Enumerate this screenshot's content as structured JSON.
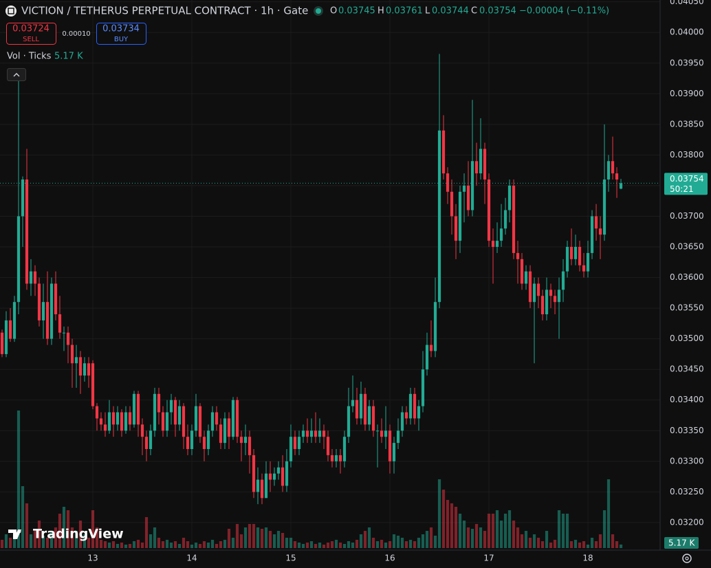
{
  "header": {
    "title": "VICTION / TETHERUS PERPETUAL CONTRACT · 1h · Gate",
    "open_label": "O",
    "open": "0.03745",
    "high_label": "H",
    "high": "0.03761",
    "low_label": "L",
    "low": "0.03744",
    "close_label": "C",
    "close": "0.03754",
    "change": "−0.00004 (−0.11%)"
  },
  "order": {
    "sell_price": "0.03724",
    "sell": "SELL",
    "spread": "0.00010",
    "buy_price": "0.03734",
    "buy": "BUY"
  },
  "brand": "TradingView",
  "chart_data": {
    "type": "candlestick",
    "timeframe_hours": 1,
    "up_color": "#22ab94",
    "down_color": "#f23645",
    "grid": true,
    "xlim": [
      12.0625,
      18.729
    ],
    "xticks": [
      13,
      14,
      15,
      16,
      17,
      18
    ],
    "ylim": [
      0.03155,
      0.04053
    ],
    "yticks": [
      {
        "value": 0.032,
        "label": "0.03200"
      },
      {
        "value": 0.0325,
        "label": "0.03250"
      },
      {
        "value": 0.033,
        "label": "0.03300"
      },
      {
        "value": 0.0335,
        "label": "0.03350"
      },
      {
        "value": 0.034,
        "label": "0.03400"
      },
      {
        "value": 0.0345,
        "label": "0.03450"
      },
      {
        "value": 0.035,
        "label": "0.03500"
      },
      {
        "value": 0.0355,
        "label": "0.03550"
      },
      {
        "value": 0.036,
        "label": "0.03600"
      },
      {
        "value": 0.0365,
        "label": "0.03650"
      },
      {
        "value": 0.037,
        "label": "0.03700"
      },
      {
        "value": 0.0375,
        "label": "0.03750"
      },
      {
        "value": 0.038,
        "label": "0.03800"
      },
      {
        "value": 0.0385,
        "label": "0.03850"
      },
      {
        "value": 0.039,
        "label": "0.03900"
      },
      {
        "value": 0.0395,
        "label": "0.03950"
      },
      {
        "value": 0.04,
        "label": "0.04000"
      },
      {
        "value": 0.0405,
        "label": "0.04050"
      }
    ],
    "last_price_label": "0.03754",
    "countdown": "50:21",
    "ohlc": [
      [
        0.0351,
        0.03515,
        0.0347,
        0.03475
      ],
      [
        0.03475,
        0.03545,
        0.0347,
        0.0353
      ],
      [
        0.0353,
        0.0355,
        0.03495,
        0.035
      ],
      [
        0.035,
        0.0357,
        0.03495,
        0.0356
      ],
      [
        0.0356,
        0.0393,
        0.0354,
        0.037
      ],
      [
        0.037,
        0.03765,
        0.0365,
        0.0376
      ],
      [
        0.0376,
        0.0381,
        0.0358,
        0.0359
      ],
      [
        0.0359,
        0.0363,
        0.0357,
        0.0361
      ],
      [
        0.0361,
        0.0362,
        0.0357,
        0.0359
      ],
      [
        0.0359,
        0.036,
        0.0352,
        0.0353
      ],
      [
        0.0353,
        0.0359,
        0.035,
        0.0356
      ],
      [
        0.0356,
        0.0361,
        0.0349,
        0.035
      ],
      [
        0.035,
        0.036,
        0.0349,
        0.0359
      ],
      [
        0.0359,
        0.0361,
        0.0353,
        0.0354
      ],
      [
        0.0354,
        0.0357,
        0.035,
        0.0351
      ],
      [
        0.0351,
        0.0352,
        0.0348,
        0.0351
      ],
      [
        0.0351,
        0.0352,
        0.0346,
        0.0349
      ],
      [
        0.0349,
        0.035,
        0.0342,
        0.0346
      ],
      [
        0.0346,
        0.0349,
        0.0342,
        0.0347
      ],
      [
        0.0347,
        0.0348,
        0.0341,
        0.0344
      ],
      [
        0.0344,
        0.0347,
        0.0343,
        0.0346
      ],
      [
        0.0346,
        0.0347,
        0.0342,
        0.0344
      ],
      [
        0.0346,
        0.03465,
        0.03385,
        0.0339
      ],
      [
        0.0339,
        0.03395,
        0.0335,
        0.0337
      ],
      [
        0.0337,
        0.0338,
        0.0335,
        0.0336
      ],
      [
        0.0336,
        0.0338,
        0.0334,
        0.0335
      ],
      [
        0.0335,
        0.034,
        0.03345,
        0.0338
      ],
      [
        0.0338,
        0.0339,
        0.0334,
        0.0336
      ],
      [
        0.0336,
        0.0339,
        0.0335,
        0.0338
      ],
      [
        0.0338,
        0.03385,
        0.0334,
        0.0335
      ],
      [
        0.0335,
        0.0339,
        0.03345,
        0.0338
      ],
      [
        0.0338,
        0.0339,
        0.0335,
        0.0336
      ],
      [
        0.0336,
        0.03415,
        0.03355,
        0.0341
      ],
      [
        0.0341,
        0.03415,
        0.0334,
        0.0336
      ],
      [
        0.0336,
        0.0337,
        0.0331,
        0.0334
      ],
      [
        0.0334,
        0.0335,
        0.033,
        0.0332
      ],
      [
        0.0332,
        0.0336,
        0.0331,
        0.0335
      ],
      [
        0.0335,
        0.0342,
        0.0334,
        0.0341
      ],
      [
        0.0341,
        0.0342,
        0.0336,
        0.0338
      ],
      [
        0.0338,
        0.0339,
        0.0334,
        0.0335
      ],
      [
        0.0335,
        0.034,
        0.0334,
        0.0338
      ],
      [
        0.0338,
        0.0341,
        0.0336,
        0.034
      ],
      [
        0.034,
        0.03405,
        0.0334,
        0.0336
      ],
      [
        0.0336,
        0.034,
        0.0335,
        0.0339
      ],
      [
        0.0339,
        0.03395,
        0.0332,
        0.0334
      ],
      [
        0.0334,
        0.0336,
        0.0331,
        0.0332
      ],
      [
        0.0332,
        0.0336,
        0.0331,
        0.0335
      ],
      [
        0.0335,
        0.0341,
        0.0334,
        0.0339
      ],
      [
        0.0339,
        0.03395,
        0.0333,
        0.0334
      ],
      [
        0.0334,
        0.0335,
        0.033,
        0.0332
      ],
      [
        0.0332,
        0.0336,
        0.0331,
        0.0335
      ],
      [
        0.0335,
        0.0339,
        0.0334,
        0.0338
      ],
      [
        0.0338,
        0.0339,
        0.0335,
        0.0336
      ],
      [
        0.0336,
        0.0337,
        0.0332,
        0.0333
      ],
      [
        0.0333,
        0.0338,
        0.0332,
        0.0337
      ],
      [
        0.0337,
        0.0338,
        0.0332,
        0.0334
      ],
      [
        0.0334,
        0.03405,
        0.03335,
        0.034
      ],
      [
        0.034,
        0.03405,
        0.0333,
        0.0334
      ],
      [
        0.0334,
        0.0335,
        0.033,
        0.0333
      ],
      [
        0.0333,
        0.0336,
        0.0331,
        0.0334
      ],
      [
        0.0334,
        0.0335,
        0.0328,
        0.0331
      ],
      [
        0.0331,
        0.0332,
        0.0324,
        0.0325
      ],
      [
        0.0325,
        0.0329,
        0.0323,
        0.0327
      ],
      [
        0.0327,
        0.0328,
        0.0323,
        0.0324
      ],
      [
        0.0324,
        0.033,
        0.0324,
        0.0328
      ],
      [
        0.0328,
        0.033,
        0.0325,
        0.0327
      ],
      [
        0.0327,
        0.0329,
        0.0326,
        0.0328
      ],
      [
        0.0328,
        0.033,
        0.0327,
        0.0329
      ],
      [
        0.0329,
        0.0331,
        0.0325,
        0.0326
      ],
      [
        0.0326,
        0.0332,
        0.0325,
        0.033
      ],
      [
        0.033,
        0.0336,
        0.0329,
        0.0334
      ],
      [
        0.0334,
        0.0335,
        0.0331,
        0.0332
      ],
      [
        0.0332,
        0.0335,
        0.0331,
        0.0334
      ],
      [
        0.0334,
        0.0336,
        0.0333,
        0.0335
      ],
      [
        0.0335,
        0.0337,
        0.0333,
        0.0334
      ],
      [
        0.0334,
        0.0337,
        0.0333,
        0.0335
      ],
      [
        0.0335,
        0.0338,
        0.0333,
        0.0334
      ],
      [
        0.0334,
        0.0337,
        0.0333,
        0.0335
      ],
      [
        0.0335,
        0.0336,
        0.0332,
        0.0334
      ],
      [
        0.0334,
        0.0335,
        0.033,
        0.0331
      ],
      [
        0.0331,
        0.0332,
        0.0329,
        0.033
      ],
      [
        0.033,
        0.0332,
        0.0329,
        0.0331
      ],
      [
        0.0331,
        0.0332,
        0.0328,
        0.033
      ],
      [
        0.033,
        0.0335,
        0.0329,
        0.0334
      ],
      [
        0.0334,
        0.0342,
        0.0333,
        0.0339
      ],
      [
        0.0339,
        0.0344,
        0.0338,
        0.034
      ],
      [
        0.034,
        0.0342,
        0.0336,
        0.0337
      ],
      [
        0.0337,
        0.0343,
        0.0336,
        0.0341
      ],
      [
        0.0341,
        0.0342,
        0.0335,
        0.0336
      ],
      [
        0.0336,
        0.034,
        0.0335,
        0.0339
      ],
      [
        0.0339,
        0.034,
        0.0334,
        0.0335
      ],
      [
        0.0335,
        0.0336,
        0.0329,
        0.0335
      ],
      [
        0.0335,
        0.0337,
        0.0333,
        0.0334
      ],
      [
        0.0334,
        0.0339,
        0.0332,
        0.0335
      ],
      [
        0.0335,
        0.0336,
        0.0328,
        0.033
      ],
      [
        0.033,
        0.0334,
        0.0328,
        0.0333
      ],
      [
        0.0333,
        0.0337,
        0.0332,
        0.0335
      ],
      [
        0.0335,
        0.0339,
        0.0334,
        0.0338
      ],
      [
        0.0338,
        0.0339,
        0.0336,
        0.0337
      ],
      [
        0.0337,
        0.0342,
        0.0336,
        0.0341
      ],
      [
        0.0341,
        0.0342,
        0.0336,
        0.0337
      ],
      [
        0.0337,
        0.034,
        0.0335,
        0.0339
      ],
      [
        0.0339,
        0.0348,
        0.0338,
        0.0345
      ],
      [
        0.0345,
        0.0351,
        0.0344,
        0.0349
      ],
      [
        0.0349,
        0.0353,
        0.0347,
        0.0348
      ],
      [
        0.0348,
        0.036,
        0.0347,
        0.0356
      ],
      [
        0.0356,
        0.03965,
        0.0355,
        0.0384
      ],
      [
        0.0384,
        0.03865,
        0.0376,
        0.0377
      ],
      [
        0.0377,
        0.0378,
        0.0372,
        0.0374
      ],
      [
        0.0374,
        0.0376,
        0.0367,
        0.037
      ],
      [
        0.037,
        0.0372,
        0.0363,
        0.0366
      ],
      [
        0.0366,
        0.0375,
        0.0364,
        0.0374
      ],
      [
        0.0374,
        0.0377,
        0.0369,
        0.0375
      ],
      [
        0.0375,
        0.0379,
        0.037,
        0.0371
      ],
      [
        0.0371,
        0.0389,
        0.037,
        0.0379
      ],
      [
        0.0379,
        0.0382,
        0.0375,
        0.0377
      ],
      [
        0.0377,
        0.0386,
        0.0376,
        0.0381
      ],
      [
        0.0381,
        0.0382,
        0.0372,
        0.0376
      ],
      [
        0.0376,
        0.0377,
        0.0365,
        0.0366
      ],
      [
        0.0366,
        0.0368,
        0.0359,
        0.0365
      ],
      [
        0.0365,
        0.0369,
        0.0364,
        0.0366
      ],
      [
        0.0366,
        0.0372,
        0.0365,
        0.0368
      ],
      [
        0.0368,
        0.0373,
        0.0367,
        0.0371
      ],
      [
        0.0371,
        0.0376,
        0.0369,
        0.0375
      ],
      [
        0.0375,
        0.0376,
        0.0363,
        0.0364
      ],
      [
        0.0364,
        0.0366,
        0.0359,
        0.0363
      ],
      [
        0.0363,
        0.0364,
        0.0358,
        0.0359
      ],
      [
        0.0359,
        0.0362,
        0.0358,
        0.0361
      ],
      [
        0.0361,
        0.0362,
        0.0355,
        0.0356
      ],
      [
        0.0356,
        0.036,
        0.0346,
        0.0359
      ],
      [
        0.0359,
        0.036,
        0.0355,
        0.0357
      ],
      [
        0.0357,
        0.0358,
        0.0353,
        0.0354
      ],
      [
        0.0354,
        0.036,
        0.0353,
        0.0358
      ],
      [
        0.0358,
        0.0359,
        0.0355,
        0.0357
      ],
      [
        0.0357,
        0.0358,
        0.0354,
        0.0356
      ],
      [
        0.0356,
        0.036,
        0.035,
        0.0358
      ],
      [
        0.0358,
        0.0363,
        0.0356,
        0.0361
      ],
      [
        0.0361,
        0.0366,
        0.036,
        0.0365
      ],
      [
        0.0365,
        0.0368,
        0.0362,
        0.0363
      ],
      [
        0.0363,
        0.0367,
        0.0362,
        0.0365
      ],
      [
        0.0365,
        0.0366,
        0.0361,
        0.0362
      ],
      [
        0.0362,
        0.0364,
        0.036,
        0.0361
      ],
      [
        0.0361,
        0.0366,
        0.036,
        0.0364
      ],
      [
        0.0364,
        0.0371,
        0.0363,
        0.037
      ],
      [
        0.037,
        0.0372,
        0.0366,
        0.0368
      ],
      [
        0.0368,
        0.037,
        0.0363,
        0.0367
      ],
      [
        0.0367,
        0.0385,
        0.0366,
        0.0376
      ],
      [
        0.0376,
        0.038,
        0.0374,
        0.0379
      ],
      [
        0.0379,
        0.0383,
        0.0376,
        0.0377
      ],
      [
        0.0377,
        0.0378,
        0.0373,
        0.0376
      ],
      [
        0.03745,
        0.03761,
        0.03744,
        0.03754
      ]
    ],
    "volume": {
      "label": "Vol · Ticks",
      "last_label": "5.17 K",
      "ylim": [
        0,
        800
      ],
      "values": [
        12,
        20,
        15,
        18,
        200,
        90,
        65,
        20,
        25,
        40,
        18,
        15,
        25,
        30,
        50,
        60,
        55,
        30,
        25,
        40,
        20,
        15,
        55,
        30,
        12,
        10,
        8,
        10,
        6,
        8,
        5,
        6,
        10,
        12,
        8,
        45,
        20,
        30,
        15,
        10,
        12,
        8,
        10,
        6,
        15,
        10,
        5,
        8,
        6,
        10,
        8,
        12,
        6,
        10,
        12,
        28,
        15,
        35,
        20,
        30,
        35,
        35,
        30,
        28,
        30,
        25,
        20,
        25,
        22,
        15,
        15,
        10,
        8,
        6,
        8,
        10,
        6,
        8,
        5,
        8,
        10,
        12,
        8,
        6,
        10,
        8,
        12,
        20,
        25,
        30,
        15,
        10,
        12,
        8,
        10,
        20,
        18,
        15,
        10,
        12,
        10,
        15,
        20,
        25,
        30,
        18,
        100,
        85,
        70,
        65,
        60,
        50,
        40,
        30,
        28,
        35,
        30,
        25,
        50,
        50,
        55,
        40,
        50,
        55,
        40,
        30,
        20,
        25,
        15,
        20,
        15,
        10,
        25,
        8,
        12,
        55,
        50,
        50,
        10,
        12,
        8,
        10,
        5,
        15,
        10,
        20,
        55,
        100,
        20,
        10,
        5.17
      ]
    }
  }
}
